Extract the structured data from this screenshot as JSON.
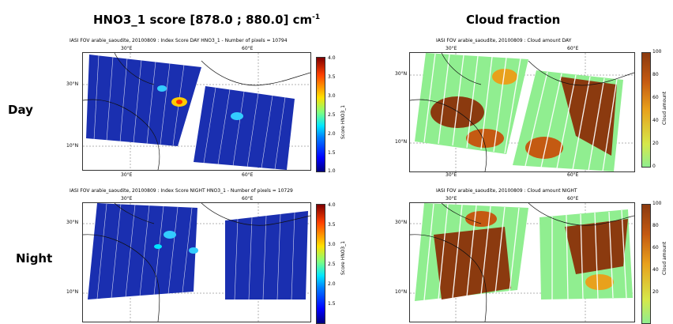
{
  "column_titles": {
    "left": "HNO3_1 score [878.0 ; 880.0] cm",
    "left_sup": "-1",
    "right": "Cloud fraction"
  },
  "row_labels": {
    "day": "Day",
    "night": "Night"
  },
  "panels": {
    "hno3_day": {
      "title": "IASI FOV arabie_saoudite, 20100809 : Index Score DAY HNO3_1 - Number of pixels = 10794",
      "lon_ticks": [
        "30°E",
        "60°E"
      ],
      "lat_ticks": [
        "30°N",
        "10°N"
      ],
      "colorbar_label": "Score HNO3_1",
      "colorbar_ticks": [
        "4.0",
        "3.5",
        "3.0",
        "2.5",
        "2.0",
        "1.5",
        "1.0"
      ]
    },
    "cloud_day": {
      "title": "IASI FOV arabie_saoudite, 20100809 : Cloud amount DAY",
      "lon_ticks": [
        "30°E",
        "60°E"
      ],
      "lat_ticks": [
        "30°N",
        "10°N"
      ],
      "colorbar_label": "Cloud amount",
      "colorbar_ticks": [
        "100",
        "80",
        "60",
        "40",
        "20",
        "0"
      ]
    },
    "hno3_night": {
      "title": "IASI FOV arabie_saoudite, 20100809 : Index Score NIGHT HNO3_1 - Number of pixels = 10729",
      "lon_ticks": [
        "30°E",
        "60°E"
      ],
      "lat_ticks": [
        "30°N",
        "10°N"
      ],
      "colorbar_label": "Score HNO3_1",
      "colorbar_ticks": [
        "4.0",
        "3.5",
        "3.0",
        "2.5",
        "2.0",
        "1.5"
      ]
    },
    "cloud_night": {
      "title": "IASI FOV arabie_saoudite, 20100809 : Cloud amount NIGHT",
      "lon_ticks": [
        "30°E",
        "60°E"
      ],
      "lat_ticks": [
        "30°N",
        "10°N"
      ],
      "colorbar_label": "Cloud amount",
      "colorbar_ticks": [
        "100",
        "80",
        "60",
        "40",
        "20"
      ]
    }
  }
}
